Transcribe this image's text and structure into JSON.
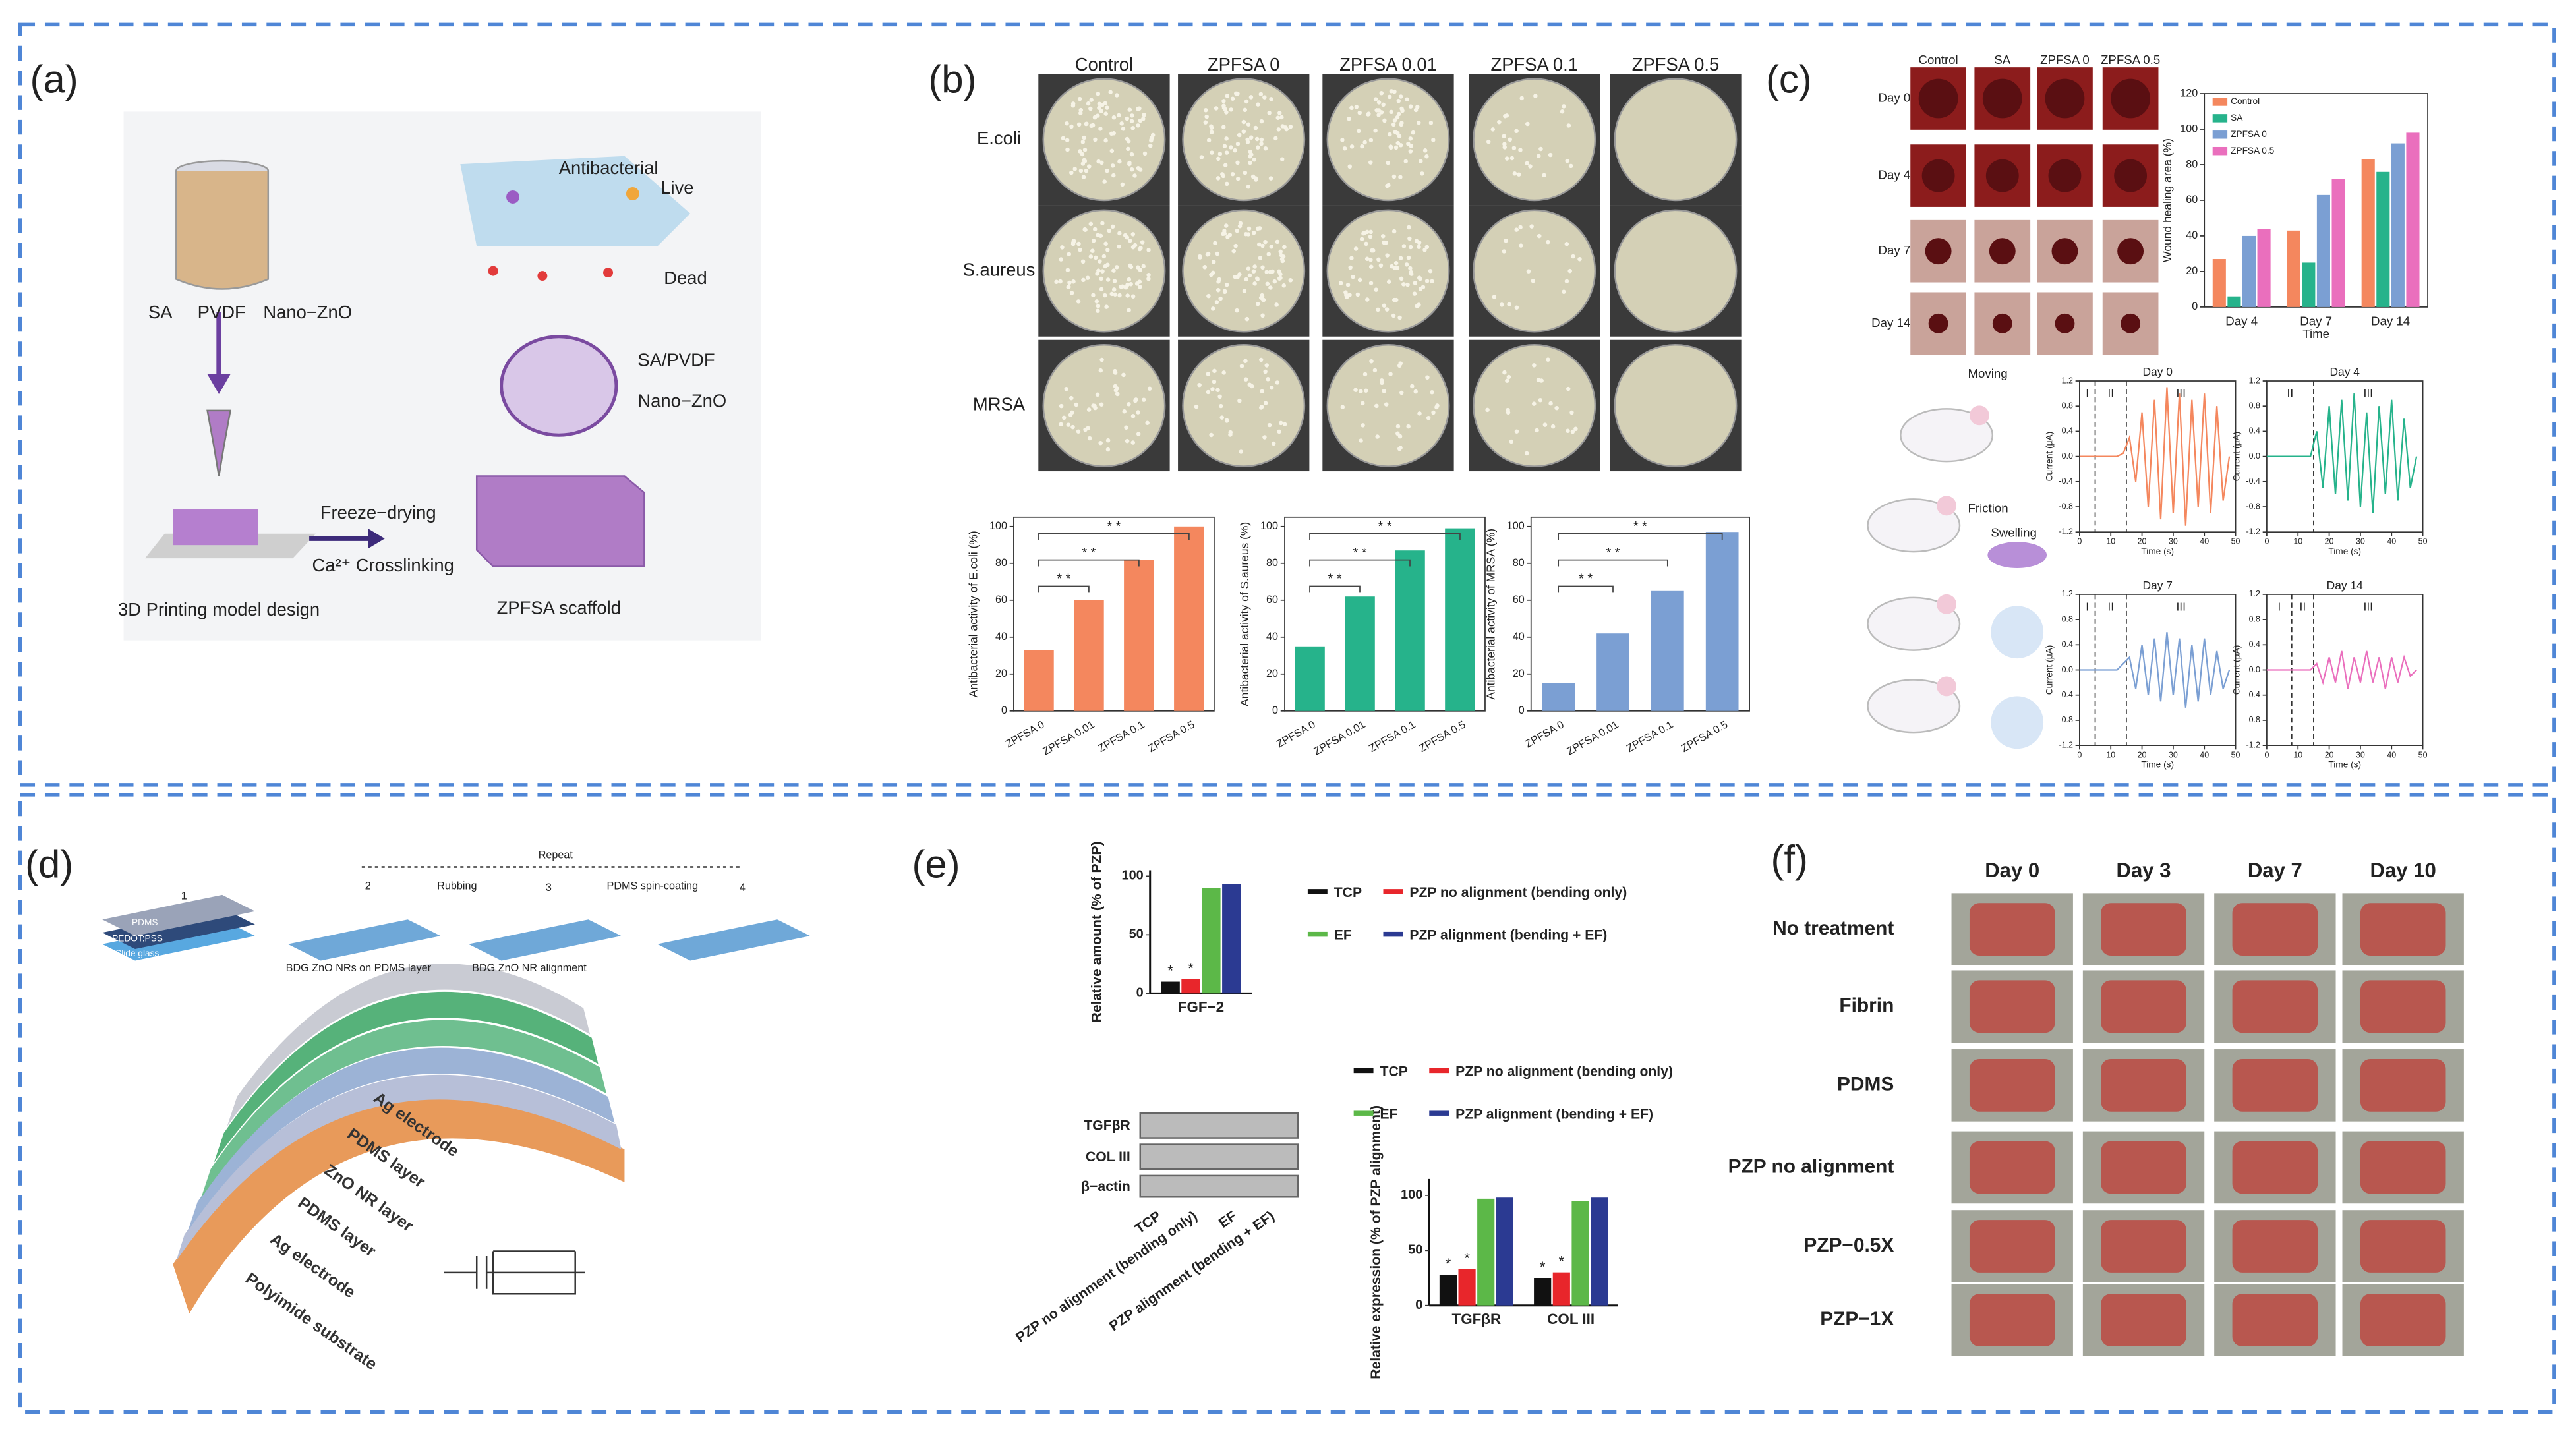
{
  "panels": {
    "a": {
      "label": "(a)",
      "texts": [
        "Antibacterial",
        "Live",
        "Dead",
        "SA",
        "PVDF",
        "Nano−ZnO",
        "SA/PVDF",
        "Nano−ZnO",
        "3D Printing model design",
        "Freeze−drying",
        "Ca²⁺ Crosslinking",
        "ZPFSA scaffold"
      ]
    },
    "b": {
      "label": "(b)",
      "columns": [
        "Control",
        "ZPFSA 0",
        "ZPFSA 0.01",
        "ZPFSA 0.1",
        "ZPFSA 0.5"
      ],
      "rows": [
        "E.coli",
        "S.aureus",
        "MRSA"
      ]
    },
    "c": {
      "label": "(c)",
      "columns": [
        "Control",
        "SA",
        "ZPFSA 0",
        "ZPFSA 0.5"
      ],
      "rows": [
        "Day 0",
        "Day 4",
        "Day 7",
        "Day 14"
      ],
      "texts": [
        "Moving",
        "Friction",
        "Swelling"
      ]
    },
    "d": {
      "label": "(d)",
      "texts": [
        "PDMS",
        "PEDOT:PSS",
        "Slide glass",
        "1",
        "2",
        "3",
        "4",
        "Repeat",
        "Rubbing",
        "PDMS spin-coating",
        "BDG ZnO NRs on PDMS layer",
        "BDG ZnO NR alignment"
      ],
      "layers": [
        "Ag electrode",
        "PDMS layer",
        "ZnO NR layer",
        "PDMS layer",
        "Ag electrode",
        "Polyimide substrate"
      ]
    },
    "e": {
      "label": "(e)",
      "blot_rows": [
        "TGFβR",
        "COL III",
        "β−actin"
      ],
      "lanes": [
        "TCP",
        "PZP no alignment (bending only)",
        "EF",
        "PZP alignment (bending + EF)"
      ]
    },
    "f": {
      "label": "(f)",
      "columns": [
        "Day 0",
        "Day 3",
        "Day 7",
        "Day 10"
      ],
      "rows": [
        "No treatment",
        "Fibrin",
        "PDMS",
        "PZP no alignment",
        "PZP−0.5X",
        "PZP−1X"
      ]
    }
  },
  "chart_data": [
    {
      "type": "bar",
      "ylabel": "Antibacterial activity of E.coli (%)",
      "categories": [
        "ZPFSA 0",
        "ZPFSA 0.01",
        "ZPFSA 0.1",
        "ZPFSA 0.5"
      ],
      "values": [
        33,
        60,
        82,
        100
      ],
      "color": "#f4875e",
      "ylim": [
        0,
        105
      ],
      "yticks": [
        0,
        20,
        40,
        60,
        80,
        100
      ],
      "significance": [
        "* *",
        "* *",
        "* *"
      ]
    },
    {
      "type": "bar",
      "ylabel": "Antibacterial activity of S.aureus (%)",
      "categories": [
        "ZPFSA 0",
        "ZPFSA 0.01",
        "ZPFSA 0.1",
        "ZPFSA 0.5"
      ],
      "values": [
        35,
        62,
        87,
        99
      ],
      "color": "#26b38b",
      "ylim": [
        0,
        105
      ],
      "yticks": [
        0,
        20,
        40,
        60,
        80,
        100
      ],
      "significance": [
        "* *",
        "* *",
        "* *"
      ]
    },
    {
      "type": "bar",
      "ylabel": "Antibacterial activity of MRSA (%)",
      "categories": [
        "ZPFSA 0",
        "ZPFSA 0.01",
        "ZPFSA 0.1",
        "ZPFSA 0.5"
      ],
      "values": [
        15,
        42,
        65,
        97
      ],
      "color": "#7b9fd3",
      "ylim": [
        0,
        105
      ],
      "yticks": [
        0,
        20,
        40,
        60,
        80,
        100
      ],
      "significance": [
        "* *",
        "* *",
        "* *"
      ]
    },
    {
      "type": "bar",
      "ylabel": "Wound healing area (%)",
      "xlabel": "Time",
      "categories": [
        "Day 4",
        "Day 7",
        "Day 14"
      ],
      "ylim": [
        0,
        120
      ],
      "yticks": [
        0,
        20,
        40,
        60,
        80,
        100,
        120
      ],
      "series": [
        {
          "name": "Control",
          "color": "#f4875e",
          "values": [
            27,
            43,
            83
          ]
        },
        {
          "name": "SA",
          "color": "#26b38b",
          "values": [
            6,
            25,
            76
          ]
        },
        {
          "name": "ZPFSA 0",
          "color": "#7b9fd3",
          "values": [
            40,
            63,
            92
          ]
        },
        {
          "name": "ZPFSA 0.5",
          "color": "#ea6fbd",
          "values": [
            44,
            72,
            98
          ]
        }
      ]
    },
    {
      "type": "line",
      "title": "Day 0",
      "ylabel": "Current (μA)",
      "xlabel": "Time (s)",
      "color": "#f4875e",
      "xlim": [
        0,
        50
      ],
      "xticks": [
        0,
        10,
        20,
        30,
        40,
        50
      ],
      "ylim": [
        -1.2,
        1.2
      ],
      "yticks": [
        -1.2,
        -0.8,
        -0.4,
        {
          "value": 0,
          "label": "0.0"
        },
        0.4,
        0.8,
        1.2
      ],
      "phase_bounds": [
        5,
        15
      ],
      "phase_labels": [
        "I",
        "II",
        "III"
      ],
      "x": [
        0,
        2,
        4,
        6,
        8,
        10,
        12,
        14,
        16,
        18,
        20,
        22,
        24,
        26,
        28,
        30,
        32,
        34,
        36,
        38,
        40,
        42,
        44,
        46,
        48
      ],
      "values": [
        0,
        0,
        0,
        0,
        0,
        0,
        0,
        0.05,
        0.3,
        -0.4,
        0.7,
        -0.8,
        0.9,
        -1.0,
        1.1,
        -0.9,
        1.0,
        -1.1,
        0.9,
        -0.8,
        1.0,
        -0.9,
        0.8,
        -0.7,
        0
      ]
    },
    {
      "type": "line",
      "title": "Day 4",
      "ylabel": "Current (μA)",
      "xlabel": "Time (s)",
      "color": "#26b38b",
      "xlim": [
        0,
        50
      ],
      "xticks": [
        0,
        10,
        20,
        30,
        40,
        50
      ],
      "ylim": [
        -1.2,
        1.2
      ],
      "yticks": [
        -1.2,
        -0.8,
        -0.4,
        {
          "value": 0,
          "label": "0.0"
        },
        0.4,
        0.8,
        1.2
      ],
      "phase_bounds": [
        15
      ],
      "phase_labels": [
        "II",
        "III"
      ],
      "x": [
        0,
        2,
        4,
        6,
        8,
        10,
        12,
        14,
        16,
        18,
        20,
        22,
        24,
        26,
        28,
        30,
        32,
        34,
        36,
        38,
        40,
        42,
        44,
        46,
        48
      ],
      "values": [
        0,
        0,
        0,
        0,
        0,
        0,
        0,
        0,
        0.4,
        -0.5,
        0.8,
        -0.6,
        0.9,
        -0.7,
        1.0,
        -0.8,
        0.7,
        -0.9,
        0.8,
        -0.6,
        0.9,
        -0.7,
        0.6,
        -0.5,
        0
      ]
    },
    {
      "type": "line",
      "title": "Day 7",
      "ylabel": "Current (μA)",
      "xlabel": "Time (s)",
      "color": "#7b9fd3",
      "xlim": [
        0,
        50
      ],
      "xticks": [
        0,
        10,
        20,
        30,
        40,
        50
      ],
      "ylim": [
        -1.2,
        1.2
      ],
      "yticks": [
        -1.2,
        -0.8,
        -0.4,
        {
          "value": 0,
          "label": "0.0"
        },
        0.4,
        0.8,
        1.2
      ],
      "phase_bounds": [
        5,
        15
      ],
      "phase_labels": [
        "I",
        "II",
        "III"
      ],
      "x": [
        0,
        2,
        4,
        6,
        8,
        10,
        12,
        14,
        16,
        18,
        20,
        22,
        24,
        26,
        28,
        30,
        32,
        34,
        36,
        38,
        40,
        42,
        44,
        46,
        48
      ],
      "values": [
        0,
        0,
        0,
        0,
        0,
        0,
        0,
        0.1,
        0.2,
        -0.3,
        0.4,
        -0.4,
        0.5,
        -0.5,
        0.6,
        -0.4,
        0.5,
        -0.6,
        0.4,
        -0.5,
        0.5,
        -0.4,
        0.3,
        -0.3,
        0
      ]
    },
    {
      "type": "line",
      "title": "Day 14",
      "ylabel": "Current (μA)",
      "xlabel": "Time (s)",
      "color": "#ea6fbd",
      "xlim": [
        0,
        50
      ],
      "xticks": [
        0,
        10,
        20,
        30,
        40,
        50
      ],
      "ylim": [
        -1.2,
        1.2
      ],
      "yticks": [
        -1.2,
        -0.8,
        -0.4,
        {
          "value": 0,
          "label": "0.0"
        },
        0.4,
        0.8,
        1.2
      ],
      "phase_bounds": [
        8,
        15
      ],
      "phase_labels": [
        "I",
        "II",
        "III"
      ],
      "x": [
        0,
        2,
        4,
        6,
        8,
        10,
        12,
        14,
        16,
        18,
        20,
        22,
        24,
        26,
        28,
        30,
        32,
        34,
        36,
        38,
        40,
        42,
        44,
        46,
        48
      ],
      "values": [
        0,
        0,
        0,
        0,
        0,
        0,
        0,
        0,
        0.1,
        -0.2,
        0.2,
        -0.2,
        0.3,
        -0.3,
        0.2,
        -0.2,
        0.3,
        -0.2,
        0.2,
        -0.3,
        0.2,
        -0.2,
        0.2,
        -0.1,
        0
      ]
    },
    {
      "type": "bar",
      "ylabel": "Relative amount (% of PZP)",
      "categories": [
        "FGF−2"
      ],
      "ylim": [
        0,
        105
      ],
      "yticks": [
        0,
        50,
        100
      ],
      "series": [
        {
          "name": "TCP",
          "color": "#111111",
          "values": [
            10
          ],
          "significance": [
            "*"
          ]
        },
        {
          "name": "PZP no alignment (bending only)",
          "color": "#e8262b",
          "values": [
            12
          ],
          "significance": [
            "*"
          ]
        },
        {
          "name": "EF",
          "color": "#5cb848",
          "values": [
            90
          ]
        },
        {
          "name": "PZP alignment (bending + EF)",
          "color": "#2b3a92",
          "values": [
            93
          ]
        }
      ]
    },
    {
      "type": "bar",
      "ylabel": "Relative expression (% of PZP alignment)",
      "categories": [
        "TGFβR",
        "COL III"
      ],
      "ylim": [
        0,
        115
      ],
      "yticks": [
        0,
        50,
        100
      ],
      "series": [
        {
          "name": "TCP",
          "color": "#111111",
          "values": [
            28,
            25
          ],
          "significance": [
            "*",
            "*"
          ]
        },
        {
          "name": "PZP no alignment (bending only)",
          "color": "#e8262b",
          "values": [
            33,
            30
          ],
          "significance": [
            "*",
            "*"
          ]
        },
        {
          "name": "EF",
          "color": "#5cb848",
          "values": [
            97,
            95
          ]
        },
        {
          "name": "PZP alignment (bending + EF)",
          "color": "#2b3a92",
          "values": [
            98,
            98
          ]
        }
      ]
    }
  ]
}
